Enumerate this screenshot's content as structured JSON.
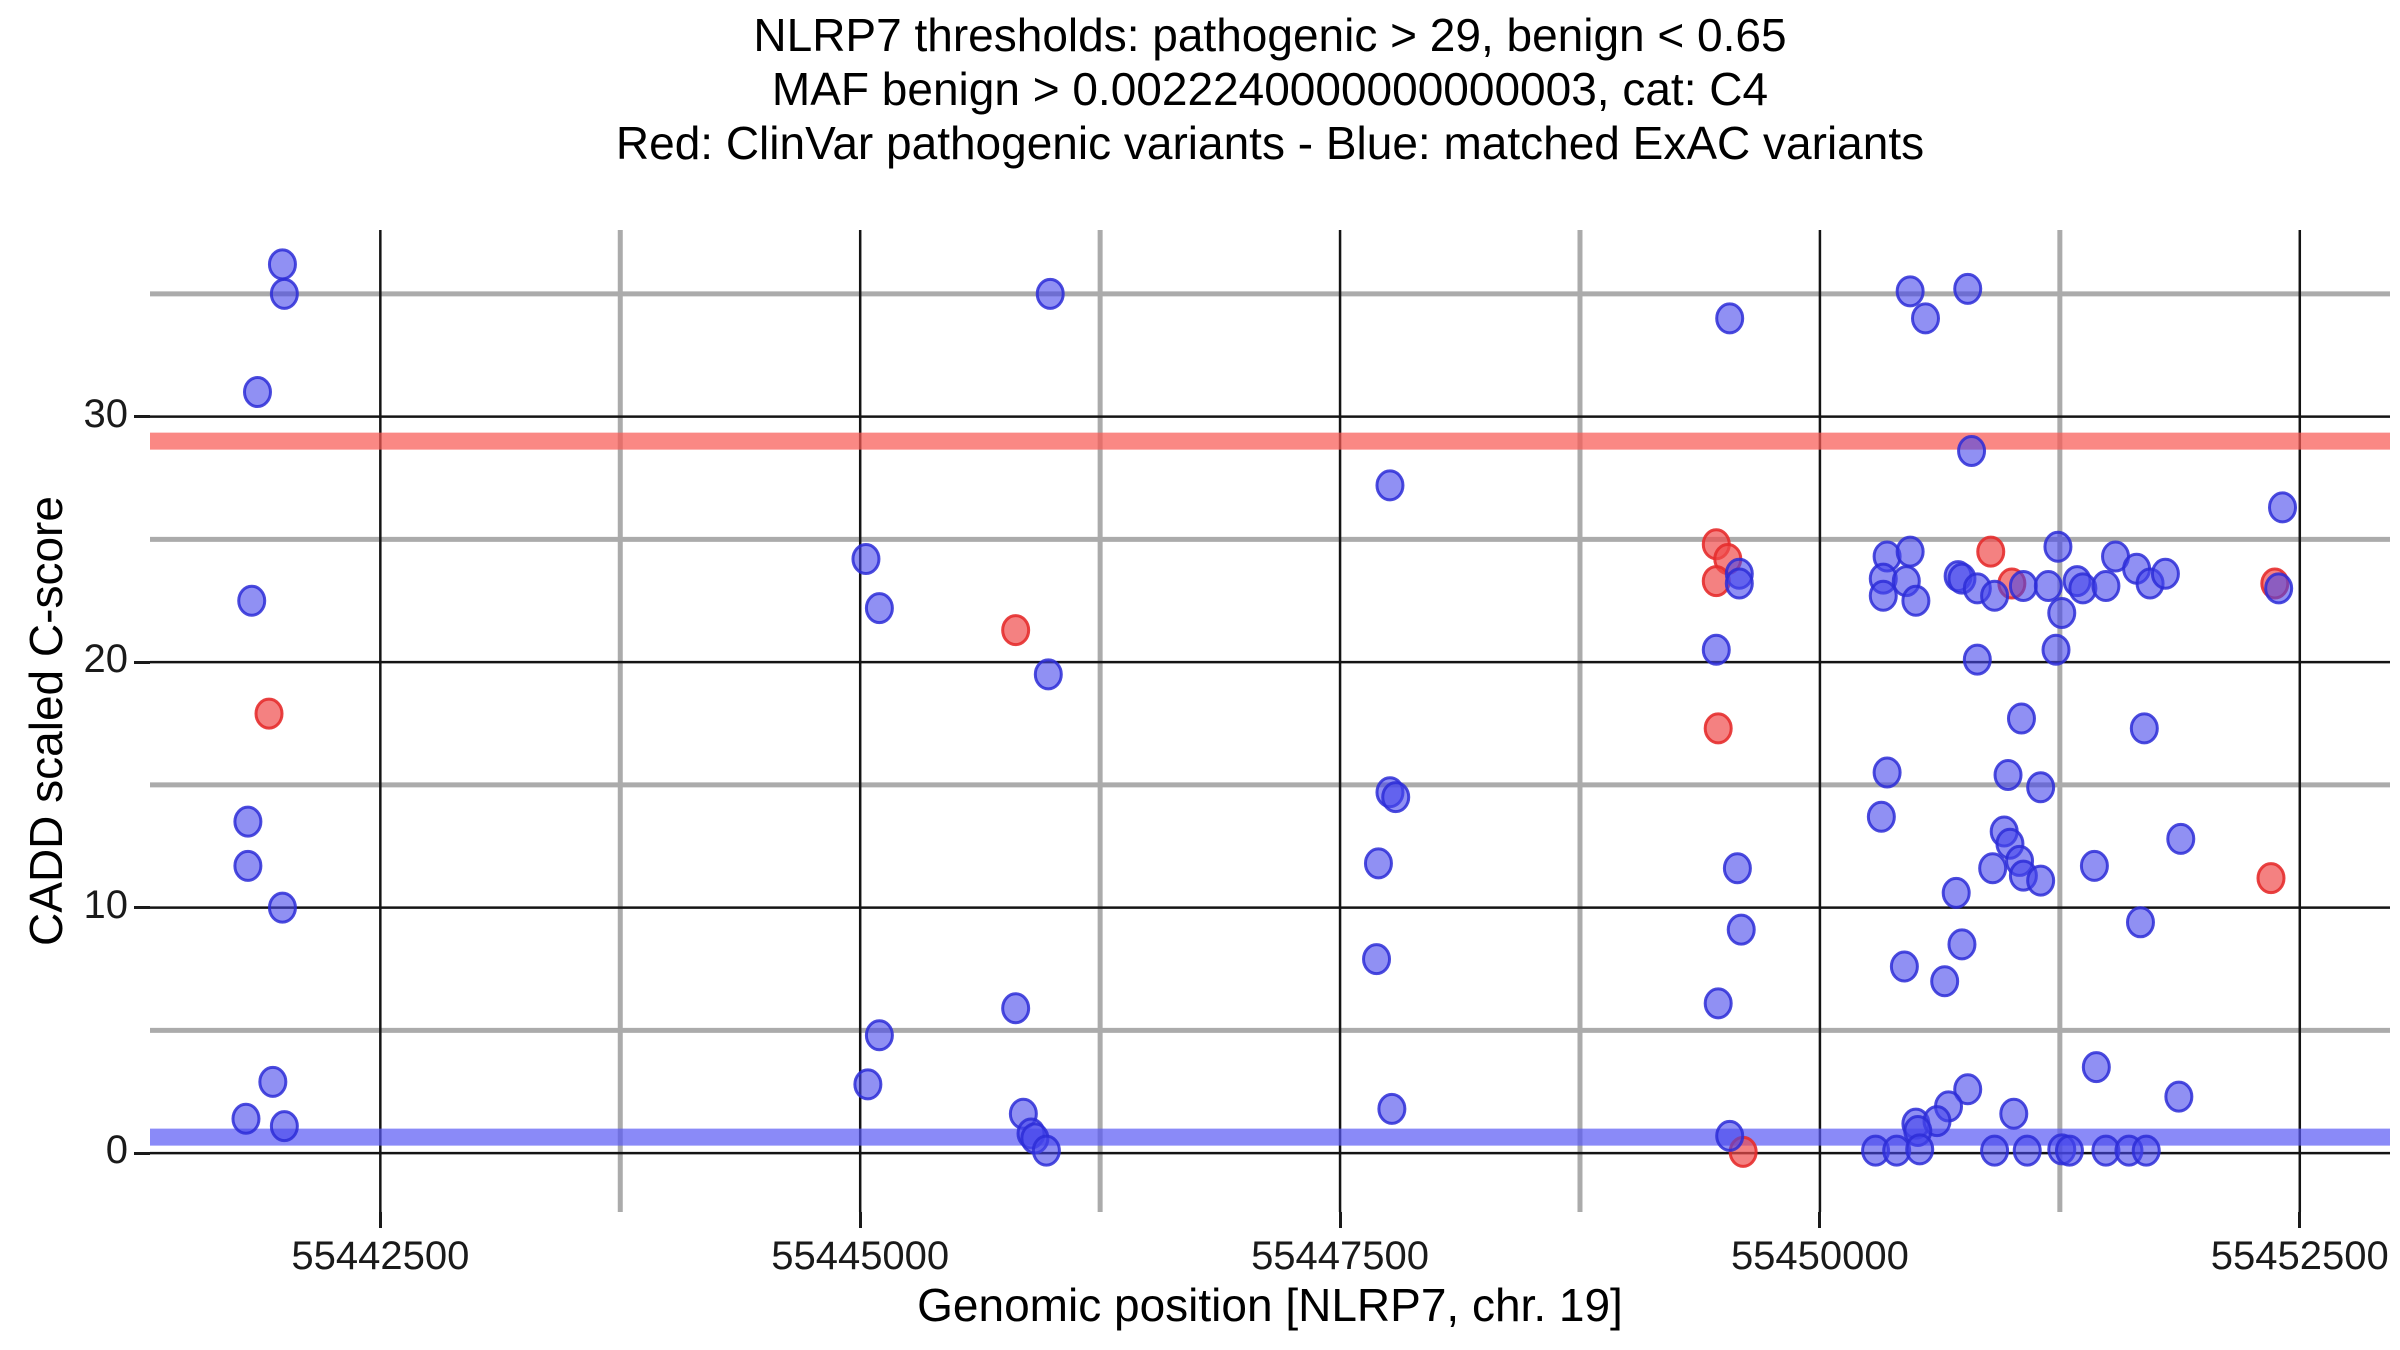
{
  "title": {
    "line1": "NLRP7 thresholds: pathogenic > 29, benign < 0.65",
    "line2": "MAF benign > 0.0022240000000000003, cat: C4",
    "line3": "Red: ClinVar pathogenic variants - Blue: matched ExAC variants"
  },
  "chart_data": {
    "type": "scatter",
    "xlabel": "Genomic position [NLRP7, chr. 19]",
    "ylabel": "CADD scaled C-score",
    "xlim": [
      55441300,
      55452970
    ],
    "ylim": [
      -2.4,
      37.6
    ],
    "x_ticks": [
      55442500,
      55445000,
      55447500,
      55450000,
      55452500
    ],
    "y_ticks": [
      0,
      10,
      20,
      30
    ],
    "x_minor": [
      55443750,
      55446250,
      55448750,
      55451250
    ],
    "y_minor": [
      5,
      15,
      25,
      35
    ],
    "grid_major_color": "#141414",
    "grid_minor_color": "#ababab",
    "thresholds": {
      "pathogenic": 29,
      "benign": 0.65,
      "pathogenic_band_color": "rgba(248,90,85,0.72)",
      "benign_band_color": "rgba(88,88,245,0.70)"
    },
    "series": [
      {
        "name": "ClinVar pathogenic variants",
        "fill": "rgba(240,75,75,0.70)",
        "stroke": "rgba(230,45,45,0.90)",
        "points": [
          [
            55441920,
            17.9
          ],
          [
            55445810,
            21.3
          ],
          [
            55449460,
            24.8
          ],
          [
            55449520,
            24.2
          ],
          [
            55449460,
            23.3
          ],
          [
            55449470,
            17.3
          ],
          [
            55449600,
            0.05
          ],
          [
            55450890,
            24.5
          ],
          [
            55451000,
            23.2
          ],
          [
            55452370,
            23.2
          ],
          [
            55452350,
            11.2
          ]
        ]
      },
      {
        "name": "matched ExAC variants",
        "fill": "rgba(70,70,235,0.60)",
        "stroke": "rgba(45,45,215,0.85)",
        "points": [
          [
            55441990,
            36.2
          ],
          [
            55442000,
            35.0
          ],
          [
            55441860,
            31.0
          ],
          [
            55441830,
            22.5
          ],
          [
            55441810,
            13.5
          ],
          [
            55441810,
            11.7
          ],
          [
            55441990,
            10.0
          ],
          [
            55441940,
            2.9
          ],
          [
            55441800,
            1.4
          ],
          [
            55442000,
            1.1
          ],
          [
            55445030,
            24.2
          ],
          [
            55445100,
            22.2
          ],
          [
            55445100,
            4.8
          ],
          [
            55445040,
            2.8
          ],
          [
            55445990,
            35.0
          ],
          [
            55445980,
            19.5
          ],
          [
            55445810,
            5.9
          ],
          [
            55445850,
            1.6
          ],
          [
            55445890,
            0.8
          ],
          [
            55445910,
            0.6
          ],
          [
            55445970,
            0.1
          ],
          [
            55447760,
            27.2
          ],
          [
            55447760,
            14.7
          ],
          [
            55447790,
            14.5
          ],
          [
            55447700,
            11.8
          ],
          [
            55447690,
            7.9
          ],
          [
            55447770,
            1.8
          ],
          [
            55449580,
            23.6
          ],
          [
            55449580,
            23.2
          ],
          [
            55449460,
            20.5
          ],
          [
            55449570,
            11.6
          ],
          [
            55449590,
            9.1
          ],
          [
            55449470,
            6.1
          ],
          [
            55449530,
            0.7
          ],
          [
            55449530,
            34.0
          ],
          [
            55450470,
            35.1
          ],
          [
            55450770,
            35.2
          ],
          [
            55450550,
            34.0
          ],
          [
            55450790,
            28.6
          ],
          [
            55450350,
            24.3
          ],
          [
            55450470,
            24.5
          ],
          [
            55450330,
            23.4
          ],
          [
            55450450,
            23.3
          ],
          [
            55450330,
            22.7
          ],
          [
            55450500,
            22.5
          ],
          [
            55450720,
            23.5
          ],
          [
            55450740,
            23.4
          ],
          [
            55450820,
            23.0
          ],
          [
            55450910,
            22.7
          ],
          [
            55451060,
            23.1
          ],
          [
            55451190,
            23.1
          ],
          [
            55451240,
            24.7
          ],
          [
            55451340,
            23.3
          ],
          [
            55451370,
            23.0
          ],
          [
            55451490,
            23.1
          ],
          [
            55451540,
            24.3
          ],
          [
            55451650,
            23.8
          ],
          [
            55451720,
            23.2
          ],
          [
            55451800,
            23.6
          ],
          [
            55451260,
            22.0
          ],
          [
            55451230,
            20.5
          ],
          [
            55450820,
            20.1
          ],
          [
            55452410,
            26.3
          ],
          [
            55452390,
            23.0
          ],
          [
            55451050,
            17.7
          ],
          [
            55451690,
            17.3
          ],
          [
            55450350,
            15.5
          ],
          [
            55450980,
            15.4
          ],
          [
            55451150,
            14.9
          ],
          [
            55450320,
            13.7
          ],
          [
            55450960,
            13.1
          ],
          [
            55450990,
            12.6
          ],
          [
            55451040,
            11.9
          ],
          [
            55450900,
            11.6
          ],
          [
            55451060,
            11.3
          ],
          [
            55451150,
            11.1
          ],
          [
            55451430,
            11.7
          ],
          [
            55451880,
            12.8
          ],
          [
            55450710,
            10.6
          ],
          [
            55451670,
            9.4
          ],
          [
            55450740,
            8.5
          ],
          [
            55450440,
            7.6
          ],
          [
            55450650,
            7.0
          ],
          [
            55451440,
            3.5
          ],
          [
            55450770,
            2.6
          ],
          [
            55450670,
            1.9
          ],
          [
            55451010,
            1.6
          ],
          [
            55451870,
            2.3
          ],
          [
            55450500,
            1.2
          ],
          [
            55450610,
            1.3
          ],
          [
            55450510,
            0.9
          ],
          [
            55450290,
            0.1
          ],
          [
            55450400,
            0.1
          ],
          [
            55450520,
            0.15
          ],
          [
            55450910,
            0.1
          ],
          [
            55451080,
            0.1
          ],
          [
            55451260,
            0.15
          ],
          [
            55451300,
            0.1
          ],
          [
            55451490,
            0.1
          ],
          [
            55451610,
            0.1
          ],
          [
            55451700,
            0.1
          ]
        ]
      }
    ]
  }
}
